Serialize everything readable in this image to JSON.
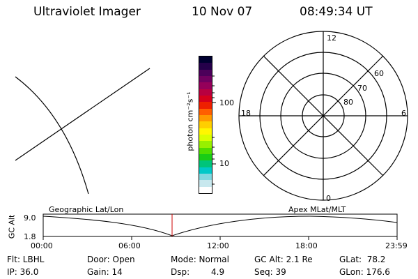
{
  "header": {
    "instrument": "Ultraviolet Imager",
    "date": "10 Nov 07",
    "time": "08:49:34 UT"
  },
  "colorbar": {
    "axis_label": "photon cm⁻²s⁻¹",
    "ticks": [
      "100",
      "10"
    ],
    "colors": [
      "#000030",
      "#25004a",
      "#4b005a",
      "#700060",
      "#95005a",
      "#b80040",
      "#d6001c",
      "#ee2000",
      "#ff5f00",
      "#ff9a00",
      "#ffcf00",
      "#fff700",
      "#d9ff00",
      "#98f000",
      "#50dd00",
      "#19cc16",
      "#00c47a",
      "#00c8c8",
      "#80d8e0",
      "#c8e8ee",
      "#ffffff"
    ]
  },
  "polar_plot": {
    "mlt_labels": [
      "12",
      "18",
      "6",
      "0"
    ],
    "lat_labels": [
      "60",
      "70",
      "80"
    ]
  },
  "timeline": {
    "left_label": "Geographic Lat/Lon",
    "right_label": "Apex MLat/MLT",
    "y_axis_label": "GC Alt",
    "y_ticks": [
      "9.0",
      "1.8"
    ],
    "x_ticks": [
      "00:00",
      "06:00",
      "12:00",
      "18:00",
      "23:59"
    ],
    "marker_color": "#cc0000"
  },
  "status": {
    "flt": "Flt: LBHL",
    "ip": "IP: 36.0",
    "door": "Door: Open",
    "gain": "Gain: 14",
    "mode": "Mode: Normal",
    "dsp_label": "Dsp:",
    "dsp_value": "4.9",
    "gc_alt": "GC Alt: 2.1 Re",
    "seq": "Seq: 39",
    "glat": "GLat:  78.2",
    "glon": "GLon: 176.6"
  }
}
